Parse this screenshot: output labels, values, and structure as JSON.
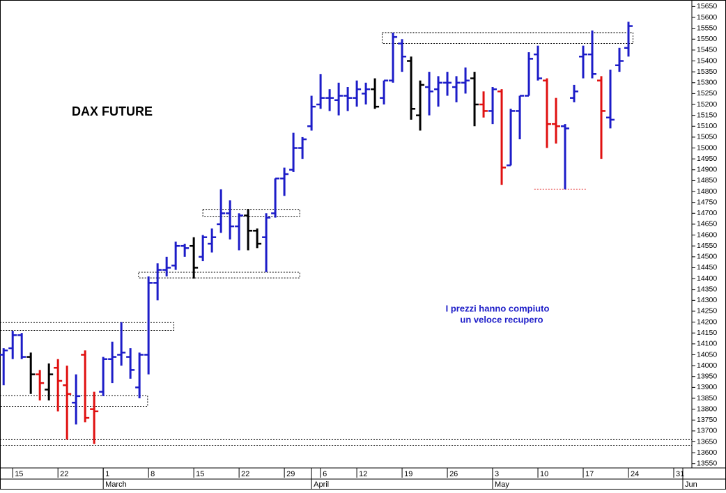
{
  "chart_data": {
    "type": "ohlc",
    "title": "DAX FUTURE",
    "annotation": [
      "I prezzi hanno compiuto",
      "un veloce recupero"
    ],
    "open": [
      14050,
      14080,
      14140,
      14040,
      13960,
      13890,
      13990,
      13910,
      13830,
      14050,
      13800,
      13880,
      14030,
      14050,
      14040,
      13900,
      14050,
      14380,
      14440,
      14460,
      14550,
      14550,
      14500,
      14560,
      14650,
      14700,
      14640,
      14690,
      14620,
      14590,
      14700,
      14860,
      14900,
      15000,
      15100,
      15200,
      15230,
      15220,
      15240,
      15230,
      15250,
      15270,
      15230,
      15310,
      15480,
      15400,
      15150,
      15280,
      15270,
      15300,
      15280,
      15300,
      15320,
      15200,
      15170,
      15260,
      14920,
      15170,
      15240,
      15430,
      15310,
      15110,
      15100,
      15230,
      15420,
      15430,
      15310,
      15140,
      15380,
      15460
    ],
    "high": [
      14080,
      14160,
      14150,
      14060,
      13980,
      14010,
      14030,
      14000,
      13960,
      14070,
      13880,
      14040,
      14110,
      14200,
      14080,
      14060,
      14410,
      14470,
      14500,
      14570,
      14560,
      14590,
      14600,
      14630,
      14810,
      14760,
      14700,
      14720,
      14630,
      14700,
      14860,
      14910,
      15070,
      15050,
      15240,
      15340,
      15270,
      15300,
      15280,
      15310,
      15300,
      15320,
      15310,
      15530,
      15500,
      15420,
      15310,
      15350,
      15330,
      15350,
      15330,
      15370,
      15350,
      15260,
      15280,
      15270,
      15180,
      15240,
      15440,
      15470,
      15320,
      15230,
      15110,
      15290,
      15470,
      15540,
      15330,
      15360,
      15460,
      15580
    ],
    "low": [
      13910,
      14030,
      14030,
      13870,
      13840,
      13840,
      13790,
      13660,
      13730,
      13740,
      13640,
      13860,
      13920,
      14000,
      13940,
      13850,
      13960,
      14300,
      14410,
      14440,
      14500,
      14400,
      14480,
      14520,
      14610,
      14580,
      14530,
      14530,
      14540,
      14430,
      14680,
      14780,
      14890,
      14950,
      15080,
      15180,
      15170,
      15150,
      15170,
      15190,
      15200,
      15180,
      15200,
      15300,
      15350,
      15130,
      15080,
      15150,
      15190,
      15240,
      15210,
      15250,
      15100,
      15140,
      15110,
      14830,
      14920,
      15040,
      15240,
      15310,
      15000,
      15020,
      14810,
      15210,
      15320,
      15320,
      14950,
      15090,
      15350,
      15420
    ],
    "close": [
      14070,
      14140,
      14040,
      13960,
      13920,
      13960,
      13930,
      13870,
      13860,
      13760,
      13790,
      14030,
      14040,
      14060,
      13980,
      14050,
      14380,
      14440,
      14450,
      14550,
      14540,
      14450,
      14590,
      14590,
      14700,
      14640,
      14690,
      14620,
      14560,
      14680,
      14860,
      14880,
      15000,
      15040,
      15190,
      15230,
      15230,
      15240,
      15230,
      15270,
      15270,
      15190,
      15310,
      15510,
      15420,
      15180,
      15290,
      15260,
      15300,
      15300,
      15300,
      15310,
      15200,
      15170,
      15270,
      14910,
      15170,
      15240,
      15410,
      15320,
      15110,
      15100,
      15090,
      15260,
      15430,
      15340,
      15170,
      15130,
      15400,
      15560
    ],
    "colors": [
      "#1c1cc8",
      "#1c1cc8",
      "#1c1cc8",
      "#000000",
      "#e01010",
      "#000000",
      "#e01010",
      "#e01010",
      "#1c1cc8",
      "#e01010",
      "#e01010",
      "#1c1cc8",
      "#1c1cc8",
      "#1c1cc8",
      "#1c1cc8",
      "#1c1cc8",
      "#1c1cc8",
      "#1c1cc8",
      "#1c1cc8",
      "#1c1cc8",
      "#1c1cc8",
      "#000000",
      "#1c1cc8",
      "#1c1cc8",
      "#1c1cc8",
      "#1c1cc8",
      "#1c1cc8",
      "#000000",
      "#000000",
      "#1c1cc8",
      "#1c1cc8",
      "#1c1cc8",
      "#1c1cc8",
      "#1c1cc8",
      "#1c1cc8",
      "#1c1cc8",
      "#1c1cc8",
      "#1c1cc8",
      "#1c1cc8",
      "#1c1cc8",
      "#1c1cc8",
      "#000000",
      "#1c1cc8",
      "#1c1cc8",
      "#1c1cc8",
      "#000000",
      "#000000",
      "#1c1cc8",
      "#1c1cc8",
      "#1c1cc8",
      "#1c1cc8",
      "#1c1cc8",
      "#000000",
      "#e01010",
      "#1c1cc8",
      "#e01010",
      "#1c1cc8",
      "#1c1cc8",
      "#1c1cc8",
      "#1c1cc8",
      "#e01010",
      "#e01010",
      "#1c1cc8",
      "#1c1cc8",
      "#1c1cc8",
      "#1c1cc8",
      "#e01010",
      "#1c1cc8",
      "#1c1cc8",
      "#1c1cc8"
    ],
    "zones": [
      {
        "from": 41.8,
        "to": 69.5,
        "y0": 15480,
        "y1": 15530
      },
      {
        "from": 22,
        "to": 32.7,
        "y0": 14686,
        "y1": 14718
      },
      {
        "from": 14.9,
        "to": 32.7,
        "y0": 14403,
        "y1": 14429
      },
      {
        "from": -0.4,
        "to": 18.8,
        "y0": 14162,
        "y1": 14198
      },
      {
        "from": -0.4,
        "to": 15.9,
        "y0": 13813,
        "y1": 13862
      },
      {
        "from": -0.4,
        "to": 76,
        "y0": 13634,
        "y1": 13660
      }
    ],
    "level_lines": [
      {
        "value": 14810,
        "from": 58.6,
        "to": 64.4,
        "color": "#e01010"
      }
    ],
    "xlim": [
      -0.4,
      76
    ],
    "xticks": [
      {
        "value": 1,
        "label": "15"
      },
      {
        "value": 6,
        "label": "22"
      },
      {
        "value": 11,
        "label": "1"
      },
      {
        "value": 16,
        "label": "8"
      },
      {
        "value": 21,
        "label": "15"
      },
      {
        "value": 26,
        "label": "22"
      },
      {
        "value": 31,
        "label": "29"
      },
      {
        "value": 35,
        "label": "6"
      },
      {
        "value": 39,
        "label": "12"
      },
      {
        "value": 44,
        "label": "19"
      },
      {
        "value": 49,
        "label": "26"
      },
      {
        "value": 54,
        "label": "3"
      },
      {
        "value": 59,
        "label": "10"
      },
      {
        "value": 64,
        "label": "17"
      },
      {
        "value": 69,
        "label": "24"
      },
      {
        "value": 74,
        "label": "31"
      }
    ],
    "month_ticks": [
      {
        "value": 11,
        "label": "March"
      },
      {
        "value": 34,
        "label": "April"
      },
      {
        "value": 54,
        "label": "May"
      },
      {
        "value": 75,
        "label": "Jun"
      }
    ],
    "ylim": [
      13530,
      15680
    ],
    "yticks": [
      13550,
      13600,
      13650,
      13700,
      13750,
      13800,
      13850,
      13900,
      13950,
      14000,
      14050,
      14100,
      14150,
      14200,
      14250,
      14300,
      14350,
      14400,
      14450,
      14500,
      14550,
      14600,
      14650,
      14700,
      14750,
      14800,
      14850,
      14900,
      14950,
      15000,
      15050,
      15100,
      15150,
      15200,
      15250,
      15300,
      15350,
      15400,
      15450,
      15500,
      15550,
      15600,
      15650
    ]
  }
}
